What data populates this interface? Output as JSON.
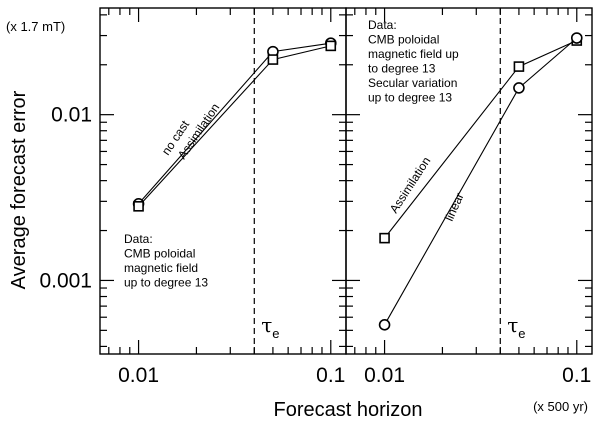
{
  "figure": {
    "ylabel": "Average forecast error",
    "xlabel": "Forecast horizon",
    "y_unit": "(x 1.7 mT)",
    "x_unit": "(x 500 yr)",
    "tau_symbol": "τ",
    "tau_subscript": "e"
  },
  "chart_data": [
    {
      "type": "line",
      "panel": "left",
      "xscale": "log",
      "yscale": "log",
      "xlim": [
        0.0063,
        0.12
      ],
      "ylim": [
        0.00036,
        0.044
      ],
      "x_ticks": [
        "0.01",
        "0.1"
      ],
      "y_ticks": [
        "0.01",
        "0.001"
      ],
      "grid": false,
      "vline_x": 0.04,
      "annotation": [
        "Data:",
        "CMB poloidal",
        "magnetic field",
        "up to degree 13"
      ],
      "series": [
        {
          "name": "no cast",
          "marker": "circle",
          "x": [
            0.01,
            0.05,
            0.1
          ],
          "y": [
            0.0029,
            0.024,
            0.027
          ]
        },
        {
          "name": "Assimilation",
          "marker": "square",
          "x": [
            0.01,
            0.05,
            0.1
          ],
          "y": [
            0.0028,
            0.0215,
            0.026
          ]
        }
      ]
    },
    {
      "type": "line",
      "panel": "right",
      "xscale": "log",
      "yscale": "log",
      "xlim": [
        0.0063,
        0.12
      ],
      "ylim": [
        0.00036,
        0.044
      ],
      "x_ticks": [
        "0.01",
        "0.1"
      ],
      "y_ticks": [],
      "grid": false,
      "vline_x": 0.04,
      "annotation": [
        "Data:",
        "CMB poloidal",
        "magnetic field up",
        "to degree 13",
        "Secular variation",
        "up to degree 13"
      ],
      "series": [
        {
          "name": "Assimilation",
          "marker": "square",
          "x": [
            0.01,
            0.05,
            0.1
          ],
          "y": [
            0.0018,
            0.0195,
            0.028
          ]
        },
        {
          "name": "linear",
          "marker": "circle",
          "x": [
            0.01,
            0.05,
            0.1
          ],
          "y": [
            0.00054,
            0.0145,
            0.029
          ]
        }
      ]
    }
  ]
}
